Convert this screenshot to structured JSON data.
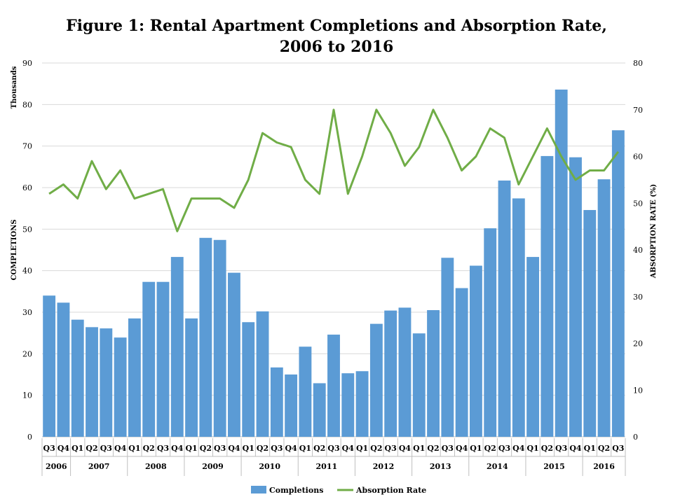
{
  "chart_data": {
    "type": "bar+line",
    "title": "Figure 1: Rental Apartment Completions and Absorption Rate, 2006 to 2016",
    "categories": [
      "Q3",
      "Q4",
      "Q1",
      "Q2",
      "Q3",
      "Q4",
      "Q1",
      "Q2",
      "Q3",
      "Q4",
      "Q1",
      "Q2",
      "Q3",
      "Q4",
      "Q1",
      "Q2",
      "Q3",
      "Q4",
      "Q1",
      "Q2",
      "Q3",
      "Q4",
      "Q1",
      "Q2",
      "Q3",
      "Q4",
      "Q1",
      "Q2",
      "Q3",
      "Q4",
      "Q1",
      "Q2",
      "Q3",
      "Q4",
      "Q1",
      "Q2",
      "Q3",
      "Q4",
      "Q1",
      "Q2",
      "Q3"
    ],
    "years": [
      {
        "label": "2006",
        "count": 2
      },
      {
        "label": "2007",
        "count": 4
      },
      {
        "label": "2008",
        "count": 4
      },
      {
        "label": "2009",
        "count": 4
      },
      {
        "label": "2010",
        "count": 4
      },
      {
        "label": "2011",
        "count": 4
      },
      {
        "label": "2012",
        "count": 4
      },
      {
        "label": "2013",
        "count": 4
      },
      {
        "label": "2014",
        "count": 4
      },
      {
        "label": "2015",
        "count": 4
      },
      {
        "label": "2016",
        "count": 3
      }
    ],
    "series": [
      {
        "name": "Completions",
        "type": "bar",
        "axis": "left",
        "color": "#5b9bd5",
        "values": [
          34.0,
          32.3,
          28.2,
          26.4,
          26.1,
          23.9,
          28.5,
          37.3,
          37.3,
          43.3,
          28.5,
          47.9,
          47.4,
          39.5,
          27.6,
          30.2,
          16.7,
          15.0,
          21.7,
          12.9,
          24.6,
          15.3,
          15.8,
          27.2,
          30.4,
          31.1,
          24.9,
          30.5,
          43.1,
          35.8,
          41.2,
          50.2,
          61.7,
          57.4,
          43.3,
          67.6,
          83.6,
          67.3,
          54.6,
          62.0,
          73.8
        ]
      },
      {
        "name": "Absorption Rate",
        "type": "line",
        "axis": "right",
        "color": "#70ad47",
        "values": [
          52,
          54,
          51,
          59,
          53,
          57,
          51,
          52,
          53,
          44,
          51,
          51,
          51,
          49,
          55,
          65,
          63,
          62,
          55,
          52,
          70,
          52,
          60,
          70,
          65,
          58,
          62,
          70,
          64,
          57,
          60,
          66,
          64,
          54,
          60,
          66,
          60,
          55,
          57,
          57,
          61
        ]
      }
    ],
    "ylabel_left": "COMPLETIONS",
    "ylabel_left_units": "Thousands",
    "ylabel_right": "ABSORPTION RATE (%)",
    "ylim_left": [
      0,
      90
    ],
    "yticks_left": [
      0,
      10,
      20,
      30,
      40,
      50,
      60,
      70,
      80,
      90
    ],
    "ylim_right": [
      0,
      80
    ],
    "yticks_right": [
      0,
      10,
      20,
      30,
      40,
      50,
      60,
      70,
      80
    ],
    "grid": true,
    "legend": {
      "placement": "bottom",
      "entries": [
        "Completions",
        "Absorption Rate"
      ]
    }
  }
}
